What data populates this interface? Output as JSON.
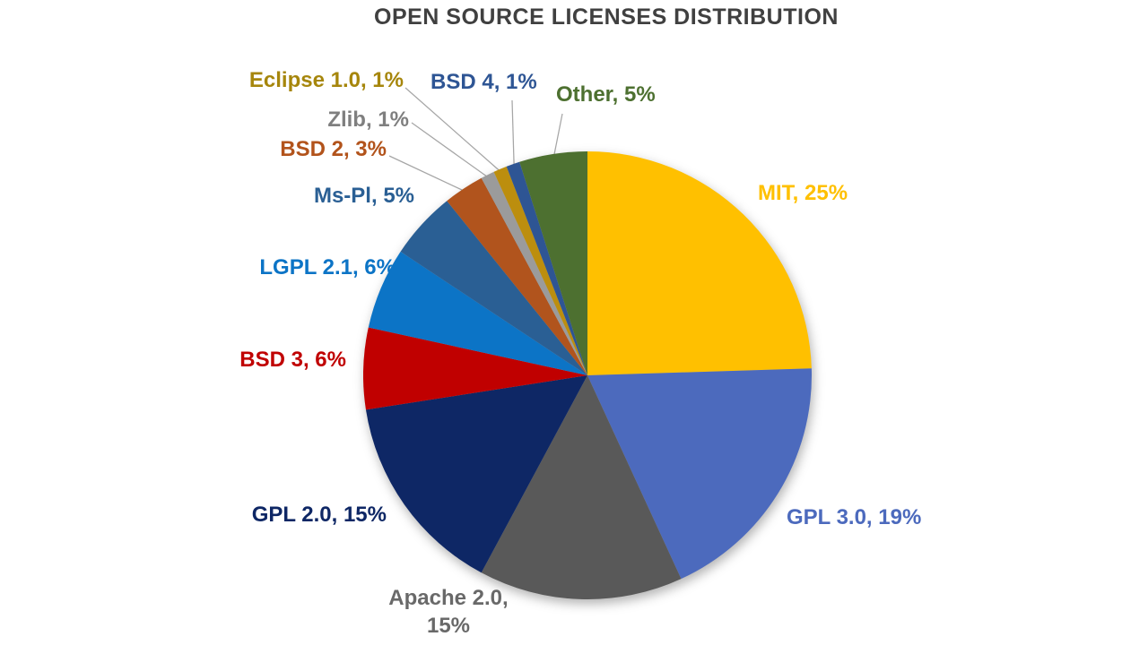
{
  "chart_data": {
    "type": "pie",
    "title": "OPEN SOURCE LICENSES DISTRIBUTION",
    "title_color": "#404040",
    "values_unit": "%",
    "direction": "clockwise",
    "start_angle_deg": 0,
    "legend_position": "none",
    "label_style": "outside callout labels",
    "leader_line_color": "#A6A6A6",
    "background_color": "#FFFFFF",
    "slices": [
      {
        "name": "MIT",
        "value": 25,
        "label": "MIT, 25%",
        "color": "#FFC000",
        "label_color": "#FFC000"
      },
      {
        "name": "GPL 3.0",
        "value": 19,
        "label": "GPL 3.0, 19%",
        "color": "#4C6ABD",
        "label_color": "#4C6ABD"
      },
      {
        "name": "Apache 2.0",
        "value": 15,
        "label": "Apache 2.0, 15%",
        "color": "#595959",
        "label_color": "#696969"
      },
      {
        "name": "GPL 2.0",
        "value": 15,
        "label": "GPL 2.0, 15%",
        "color": "#0E2765",
        "label_color": "#0E2765"
      },
      {
        "name": "BSD 3",
        "value": 6,
        "label": "BSD 3, 6%",
        "color": "#C00000",
        "label_color": "#C00000"
      },
      {
        "name": "LGPL 2.1",
        "value": 6,
        "label": "LGPL 2.1, 6%",
        "color": "#0C74C6",
        "label_color": "#0C74C6"
      },
      {
        "name": "Ms-Pl",
        "value": 5,
        "label": "Ms-Pl, 5%",
        "color": "#2A5F94",
        "label_color": "#2A5F94"
      },
      {
        "name": "BSD 2",
        "value": 3,
        "label": "BSD 2, 3%",
        "color": "#B1541D",
        "label_color": "#B2531B"
      },
      {
        "name": "Zlib",
        "value": 1,
        "label": "Zlib, 1%",
        "color": "#9B9B9B",
        "label_color": "#7F7F7F"
      },
      {
        "name": "Eclipse 1.0",
        "value": 1,
        "label": "Eclipse 1.0, 1%",
        "color": "#BC8E0E",
        "label_color": "#A6860C"
      },
      {
        "name": "BSD 4",
        "value": 1,
        "label": "BSD 4, 1%",
        "color": "#2E5594",
        "label_color": "#2E5594"
      },
      {
        "name": "Other",
        "value": 5,
        "label": "Other, 5%",
        "color": "#4D7030",
        "label_color": "#4D7030"
      }
    ]
  }
}
